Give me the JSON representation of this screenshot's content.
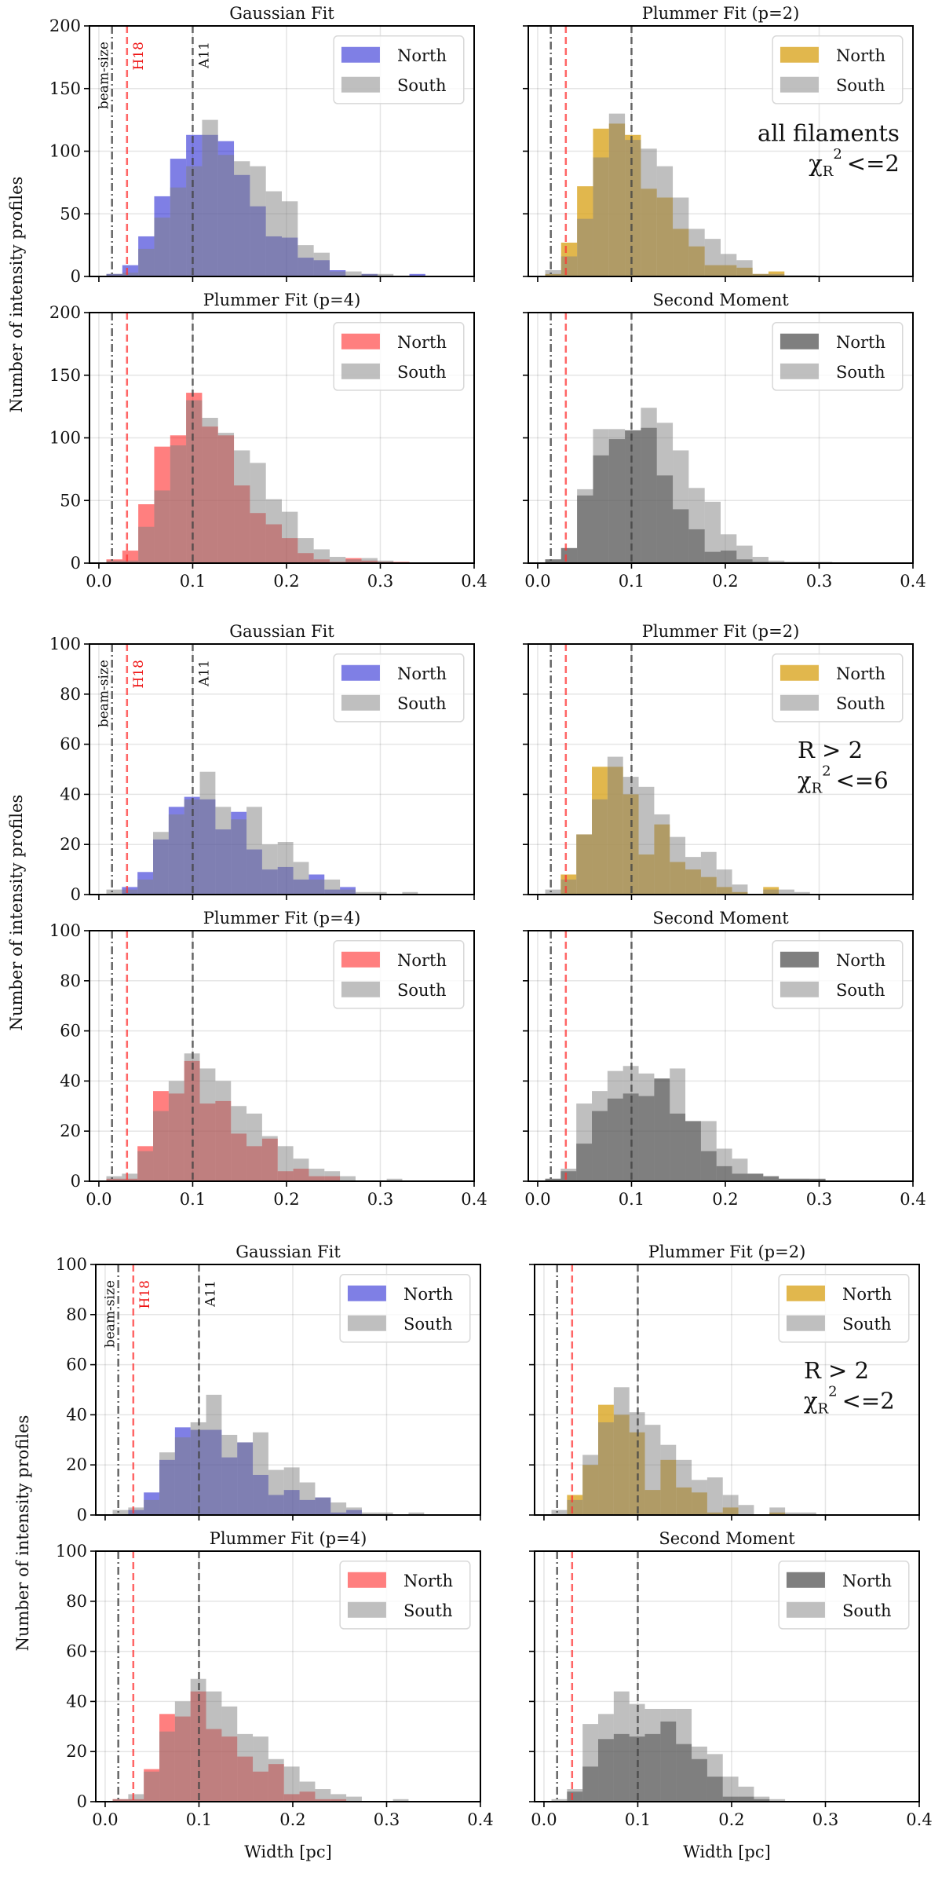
{
  "figure": {
    "ylabel": "Number of intensity profiles",
    "xlabel": "Width [pc]",
    "colors": {
      "gaussian_north": "#0000cc",
      "plummer2_north": "#daa520",
      "plummer4_north": "#ff0000",
      "moment_north": "#000000",
      "south": "#808080",
      "beam_line": "#555555",
      "h18_line": "#ff3333",
      "a11_line": "#444444"
    }
  },
  "groups": [
    {
      "annotation": {
        "line1": "all filaments",
        "chi": "χ",
        "sub": "R",
        "sup": "2",
        "rest": "<=2"
      }
    },
    {
      "annotation": {
        "line1": "R > 2",
        "chi": "χ",
        "sub": "R",
        "sup": "2",
        "rest": "<=6"
      }
    },
    {
      "annotation": {
        "line1": "R > 2",
        "chi": "χ",
        "sub": "R",
        "sup": "2",
        "rest": "<=2"
      }
    }
  ],
  "chart_data": [
    {
      "group": 0,
      "type": "bar",
      "title": "Gaussian Fit",
      "xlim": [
        -0.01,
        0.4
      ],
      "ylim": [
        0,
        200
      ],
      "yticks": [
        "0",
        "50",
        "100",
        "150",
        "200"
      ],
      "xticks": [
        "0.0",
        "0.1",
        "0.2",
        "0.3",
        "0.4"
      ],
      "grid": true,
      "legend": "top-right",
      "bin_start": 0.008,
      "bin_width": 0.017,
      "series": [
        {
          "name": "North",
          "color": "#0000cc",
          "values": [
            2,
            9,
            32,
            64,
            94,
            113,
            113,
            108,
            81,
            56,
            32,
            31,
            15,
            13,
            5,
            0,
            2,
            0,
            0,
            2
          ]
        },
        {
          "name": "South",
          "color": "#808080",
          "values": [
            2,
            3,
            22,
            47,
            71,
            88,
            125,
            97,
            92,
            88,
            68,
            60,
            25,
            19,
            4,
            4,
            2,
            2,
            0,
            0
          ]
        }
      ],
      "vlines": [
        {
          "x": 0.014,
          "label": "beam-size"
        },
        {
          "x": 0.03,
          "label": "H18"
        },
        {
          "x": 0.1,
          "label": "A11"
        }
      ]
    },
    {
      "group": 0,
      "type": "bar",
      "title": "Plummer Fit (p=2)",
      "xlim": [
        -0.01,
        0.4
      ],
      "ylim": [
        0,
        200
      ],
      "xticks": [
        "0.0",
        "0.1",
        "0.2",
        "0.3",
        "0.4"
      ],
      "grid": true,
      "legend": "top-right",
      "bin_start": 0.008,
      "bin_width": 0.017,
      "series": [
        {
          "name": "North",
          "color": "#daa520",
          "values": [
            2,
            27,
            72,
            118,
            122,
            113,
            70,
            63,
            38,
            24,
            9,
            9,
            7,
            2,
            4,
            0,
            0
          ]
        },
        {
          "name": "South",
          "color": "#808080",
          "values": [
            5,
            16,
            46,
            95,
            130,
            109,
            102,
            88,
            63,
            38,
            30,
            18,
            13,
            2,
            2,
            1,
            1
          ]
        }
      ],
      "vlines": [
        {
          "x": 0.014
        },
        {
          "x": 0.03
        },
        {
          "x": 0.1
        }
      ]
    },
    {
      "group": 0,
      "type": "bar",
      "title": "Plummer Fit (p=4)",
      "xlim": [
        -0.01,
        0.4
      ],
      "ylim": [
        0,
        200
      ],
      "yticks": [
        "0",
        "50",
        "100",
        "150",
        "200"
      ],
      "xticks": [
        "0.0",
        "0.1",
        "0.2",
        "0.3",
        "0.4"
      ],
      "grid": true,
      "legend": "top-right",
      "bin_start": 0.008,
      "bin_width": 0.017,
      "series": [
        {
          "name": "North",
          "color": "#ff0000",
          "values": [
            3,
            10,
            47,
            93,
            102,
            136,
            109,
            102,
            62,
            40,
            31,
            20,
            8,
            3,
            1,
            4,
            2,
            1,
            1,
            0
          ]
        },
        {
          "name": "South",
          "color": "#808080",
          "values": [
            2,
            2,
            29,
            58,
            94,
            130,
            116,
            104,
            90,
            80,
            51,
            41,
            20,
            11,
            5,
            3,
            4,
            2,
            0,
            0
          ]
        }
      ],
      "vlines": [
        {
          "x": 0.014
        },
        {
          "x": 0.03
        },
        {
          "x": 0.1
        }
      ]
    },
    {
      "group": 0,
      "type": "bar",
      "title": "Second Moment",
      "xlim": [
        -0.01,
        0.4
      ],
      "ylim": [
        0,
        200
      ],
      "xticks": [
        "0.0",
        "0.1",
        "0.2",
        "0.3",
        "0.4"
      ],
      "grid": true,
      "legend": "top-right",
      "bin_start": 0.008,
      "bin_width": 0.017,
      "series": [
        {
          "name": "North",
          "color": "#000000",
          "values": [
            3,
            12,
            54,
            86,
            99,
            106,
            108,
            70,
            43,
            27,
            9,
            10,
            3,
            1,
            0,
            0,
            0
          ]
        },
        {
          "name": "South",
          "color": "#808080",
          "values": [
            3,
            12,
            59,
            107,
            107,
            106,
            124,
            112,
            90,
            60,
            49,
            23,
            14,
            5,
            2,
            1,
            1,
            1
          ]
        }
      ],
      "vlines": [
        {
          "x": 0.014
        },
        {
          "x": 0.03
        },
        {
          "x": 0.1
        }
      ]
    },
    {
      "group": 1,
      "type": "bar",
      "title": "Gaussian Fit",
      "xlim": [
        -0.01,
        0.4
      ],
      "ylim": [
        0,
        100
      ],
      "yticks": [
        "0",
        "20",
        "40",
        "60",
        "80",
        "100"
      ],
      "xticks": [
        "0.0",
        "0.1",
        "0.2",
        "0.3",
        "0.4"
      ],
      "grid": true,
      "legend": "top-right",
      "bin_start": 0.008,
      "bin_width": 0.0166,
      "series": [
        {
          "name": "North",
          "color": "#0000cc",
          "values": [
            0,
            3,
            9,
            22,
            35,
            39,
            38,
            26,
            33,
            18,
            10,
            11,
            6,
            8,
            2,
            3,
            0,
            0,
            0,
            0
          ]
        },
        {
          "name": "South",
          "color": "#808080",
          "values": [
            2,
            2,
            6,
            25,
            32,
            38,
            49,
            35,
            30,
            35,
            20,
            21,
            13,
            6,
            6,
            2,
            1,
            1,
            0,
            1
          ]
        }
      ],
      "vlines": [
        {
          "x": 0.014,
          "label": "beam-size"
        },
        {
          "x": 0.03,
          "label": "H18"
        },
        {
          "x": 0.1,
          "label": "A11"
        }
      ]
    },
    {
      "group": 1,
      "type": "bar",
      "title": "Plummer Fit (p=2)",
      "xlim": [
        -0.01,
        0.4
      ],
      "ylim": [
        0,
        100
      ],
      "xticks": [
        "0.0",
        "0.1",
        "0.2",
        "0.3",
        "0.4"
      ],
      "grid": true,
      "legend": "top-right",
      "bin_start": 0.008,
      "bin_width": 0.0166,
      "series": [
        {
          "name": "North",
          "color": "#daa520",
          "values": [
            0,
            8,
            24,
            51,
            51,
            40,
            16,
            28,
            13,
            10,
            7,
            3,
            1,
            0,
            3,
            0,
            0
          ]
        },
        {
          "name": "South",
          "color": "#808080",
          "values": [
            2,
            6,
            24,
            38,
            55,
            47,
            43,
            32,
            23,
            15,
            17,
            10,
            4,
            0,
            2,
            2,
            1
          ]
        }
      ],
      "vlines": [
        {
          "x": 0.014
        },
        {
          "x": 0.03
        },
        {
          "x": 0.1
        }
      ]
    },
    {
      "group": 1,
      "type": "bar",
      "title": "Plummer Fit (p=4)",
      "xlim": [
        -0.01,
        0.4
      ],
      "ylim": [
        0,
        100
      ],
      "yticks": [
        "0",
        "20",
        "40",
        "60",
        "80",
        "100"
      ],
      "xticks": [
        "0.0",
        "0.1",
        "0.2",
        "0.3",
        "0.4"
      ],
      "grid": true,
      "legend": "top-right",
      "bin_start": 0.008,
      "bin_width": 0.0166,
      "series": [
        {
          "name": "North",
          "color": "#ff0000",
          "values": [
            1,
            1,
            14,
            36,
            35,
            48,
            31,
            32,
            19,
            14,
            17,
            4,
            5,
            2,
            2,
            0,
            0,
            0,
            0
          ]
        },
        {
          "name": "South",
          "color": "#808080",
          "values": [
            2,
            3,
            12,
            28,
            40,
            51,
            45,
            40,
            30,
            27,
            18,
            14,
            9,
            5,
            4,
            2,
            0,
            0,
            1
          ]
        }
      ],
      "vlines": [
        {
          "x": 0.014
        },
        {
          "x": 0.03
        },
        {
          "x": 0.1
        }
      ]
    },
    {
      "group": 1,
      "type": "bar",
      "title": "Second Moment",
      "xlim": [
        -0.01,
        0.4
      ],
      "ylim": [
        0,
        100
      ],
      "xticks": [
        "0.0",
        "0.1",
        "0.2",
        "0.3",
        "0.4"
      ],
      "grid": true,
      "legend": "top-right",
      "bin_start": 0.008,
      "bin_width": 0.0166,
      "series": [
        {
          "name": "North",
          "color": "#000000",
          "values": [
            1,
            4,
            15,
            28,
            33,
            35,
            34,
            41,
            27,
            24,
            12,
            6,
            3,
            3,
            2,
            1,
            1,
            1
          ]
        },
        {
          "name": "South",
          "color": "#808080",
          "values": [
            1,
            5,
            31,
            36,
            44,
            46,
            43,
            40,
            45,
            24,
            24,
            13,
            9,
            3,
            1,
            1,
            1,
            0
          ]
        }
      ],
      "vlines": [
        {
          "x": 0.014
        },
        {
          "x": 0.03
        },
        {
          "x": 0.1
        }
      ]
    },
    {
      "group": 2,
      "type": "bar",
      "title": "Gaussian Fit",
      "xlim": [
        -0.01,
        0.4
      ],
      "ylim": [
        0,
        100
      ],
      "yticks": [
        "0",
        "20",
        "40",
        "60",
        "80",
        "100"
      ],
      "xticks": [
        "0.0",
        "0.1",
        "0.2",
        "0.3",
        "0.4"
      ],
      "grid": true,
      "legend": "top-right",
      "bin_start": 0.008,
      "bin_width": 0.0166,
      "series": [
        {
          "name": "North",
          "color": "#0000cc",
          "values": [
            0,
            2,
            9,
            22,
            35,
            34,
            34,
            23,
            29,
            16,
            8,
            10,
            6,
            7,
            1,
            2,
            0,
            0,
            0,
            0
          ]
        },
        {
          "name": "South",
          "color": "#808080",
          "values": [
            2,
            3,
            6,
            25,
            31,
            37,
            48,
            32,
            29,
            33,
            18,
            19,
            13,
            7,
            5,
            3,
            1,
            1,
            0,
            1
          ]
        }
      ],
      "vlines": [
        {
          "x": 0.014,
          "label": "beam-size"
        },
        {
          "x": 0.03,
          "label": "H18"
        },
        {
          "x": 0.1,
          "label": "A11"
        }
      ]
    },
    {
      "group": 2,
      "type": "bar",
      "title": "Plummer Fit (p=2)",
      "xlim": [
        -0.01,
        0.4
      ],
      "ylim": [
        0,
        100
      ],
      "xticks": [
        "0.0",
        "0.1",
        "0.2",
        "0.3",
        "0.4"
      ],
      "grid": true,
      "legend": "top-right",
      "bin_start": 0.008,
      "bin_width": 0.0166,
      "series": [
        {
          "name": "North",
          "color": "#daa520",
          "values": [
            0,
            8,
            20,
            44,
            40,
            33,
            10,
            22,
            11,
            9,
            1,
            3,
            0,
            0,
            1,
            0,
            0
          ]
        },
        {
          "name": "South",
          "color": "#808080",
          "values": [
            2,
            6,
            24,
            37,
            51,
            41,
            36,
            28,
            22,
            14,
            15,
            8,
            4,
            0,
            3,
            1,
            1
          ]
        }
      ],
      "vlines": [
        {
          "x": 0.014
        },
        {
          "x": 0.03
        },
        {
          "x": 0.1
        }
      ]
    },
    {
      "group": 2,
      "type": "bar",
      "title": "Plummer Fit (p=4)",
      "xlim": [
        -0.01,
        0.4
      ],
      "ylim": [
        0,
        100
      ],
      "yticks": [
        "0",
        "20",
        "40",
        "60",
        "80",
        "100"
      ],
      "xticks": [
        "0.0",
        "0.1",
        "0.2",
        "0.3",
        "0.4"
      ],
      "grid": true,
      "legend": "top-right",
      "bin_start": 0.008,
      "bin_width": 0.0166,
      "series": [
        {
          "name": "North",
          "color": "#ff0000",
          "values": [
            1,
            1,
            13,
            35,
            34,
            44,
            29,
            26,
            18,
            12,
            15,
            3,
            4,
            1,
            1,
            0,
            0,
            0,
            0
          ]
        },
        {
          "name": "South",
          "color": "#808080",
          "values": [
            1,
            3,
            12,
            28,
            40,
            49,
            44,
            38,
            27,
            26,
            17,
            14,
            8,
            5,
            3,
            2,
            0,
            0,
            1
          ]
        }
      ],
      "vlines": [
        {
          "x": 0.014
        },
        {
          "x": 0.03
        },
        {
          "x": 0.1
        }
      ]
    },
    {
      "group": 2,
      "type": "bar",
      "title": "Second Moment",
      "xlim": [
        -0.01,
        0.4
      ],
      "ylim": [
        0,
        100
      ],
      "xticks": [
        "0.0",
        "0.1",
        "0.2",
        "0.3",
        "0.4"
      ],
      "grid": true,
      "legend": "top-right",
      "bin_start": 0.008,
      "bin_width": 0.0166,
      "series": [
        {
          "name": "North",
          "color": "#000000",
          "values": [
            0,
            4,
            14,
            25,
            27,
            26,
            27,
            32,
            23,
            17,
            10,
            2,
            2,
            1,
            0
          ]
        },
        {
          "name": "South",
          "color": "#808080",
          "values": [
            1,
            5,
            31,
            35,
            44,
            39,
            37,
            37,
            37,
            22,
            19,
            10,
            6,
            2,
            1
          ]
        }
      ],
      "vlines": [
        {
          "x": 0.014
        },
        {
          "x": 0.03
        },
        {
          "x": 0.1
        }
      ]
    }
  ]
}
